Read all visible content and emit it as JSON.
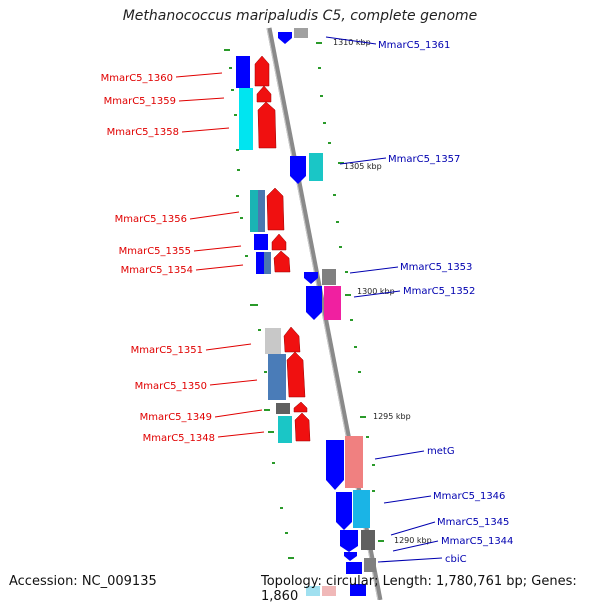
{
  "title": "Methanococcus maripaludis C5, complete genome",
  "accession": "Accession: NC_009135",
  "topology": "Topology: circular; Length: 1,780,761 bp; Genes: 1,860",
  "colors": {
    "left_label": "#e00000",
    "right_label": "#0000b0",
    "forward_leader": "#e00000",
    "reverse_leader": "#0000b0",
    "tick": "#2a9a2a",
    "backbone": "#808080"
  },
  "scale_labels": [
    "1310 kbp",
    "1305 kbp",
    "1300 kbp",
    "1295 kbp",
    "1290 kbp"
  ],
  "left_genes": [
    "MmarC5_1360",
    "MmarC5_1359",
    "MmarC5_1358",
    "MmarC5_1356",
    "MmarC5_1355",
    "MmarC5_1354",
    "MmarC5_1351",
    "MmarC5_1350",
    "MmarC5_1349",
    "MmarC5_1348"
  ],
  "right_genes": [
    "MmarC5_1361",
    "MmarC5_1357",
    "MmarC5_1353",
    "MmarC5_1352",
    "metG",
    "MmarC5_1346",
    "MmarC5_1345",
    "MmarC5_1344",
    "cbiC"
  ]
}
